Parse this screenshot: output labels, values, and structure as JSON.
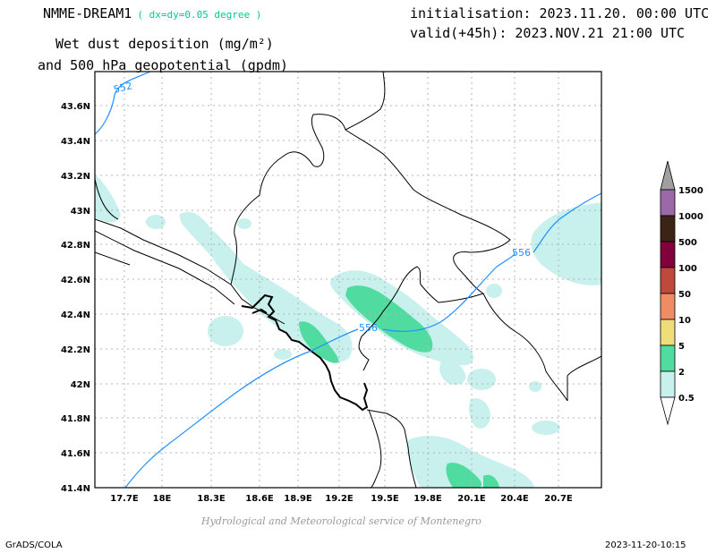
{
  "header": {
    "model": "NMME-DREAM1",
    "resolution": "( dx=dy=0.05 degree )",
    "title_line1": "Wet dust deposition (mg/m²)",
    "title_line2": "and 500 hPa geopotential (gpdm)",
    "init": "initialisation: 2023.11.20. 00:00 UTC",
    "valid": "valid(+45h): 2023.NOV.21 21:00 UTC"
  },
  "map": {
    "lat_labels": [
      "43.6N",
      "43.4N",
      "43.2N",
      "43N",
      "42.8N",
      "42.6N",
      "42.4N",
      "42.2N",
      "42N",
      "41.8N",
      "41.6N",
      "41.4N"
    ],
    "lon_labels": [
      "17.7E",
      "18E",
      "18.3E",
      "18.6E",
      "18.9E",
      "19.2E",
      "19.5E",
      "19.8E",
      "20.1E",
      "20.4E",
      "20.7E"
    ],
    "contour_labels": [
      "552",
      "556",
      "556"
    ],
    "contour_color": "#1e90ff",
    "grid": true
  },
  "legend": {
    "levels": [
      "1500",
      "1000",
      "500",
      "100",
      "50",
      "10",
      "5",
      "2",
      "0.5"
    ],
    "colors": [
      "#a0a0a0",
      "#9b68a8",
      "#3c2414",
      "#82003c",
      "#bf4a3c",
      "#f08c64",
      "#f0dc78",
      "#50dca0",
      "#c8f0ec"
    ]
  },
  "footer": {
    "credit": "Hydrological and Meteorological service of Montenegro",
    "software": "GrADS/COLA",
    "timestamp": "2023-11-20-10:15"
  }
}
